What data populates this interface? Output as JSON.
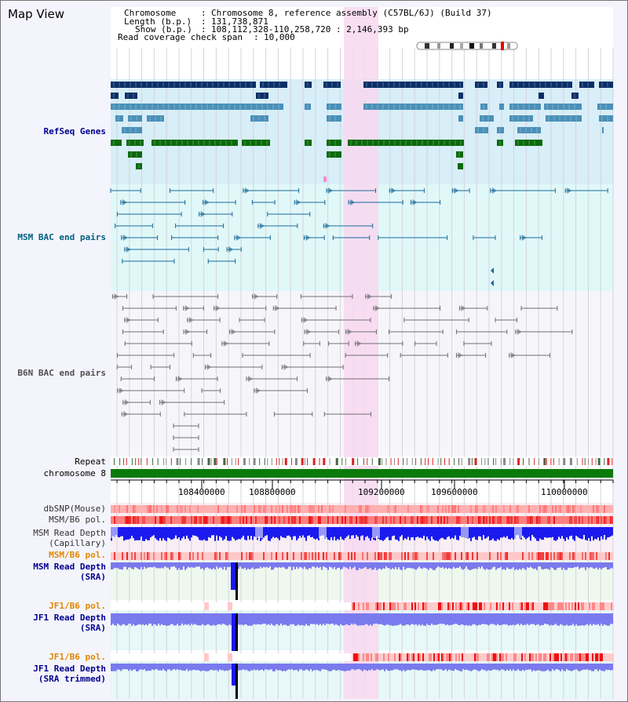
{
  "title": "Map View",
  "info": {
    "chromosome_key": "Chromosome",
    "chromosome_value": "Chromosome 8, reference assembly (C57BL/6J) (Build 37)",
    "length_key": "Length (b.p.)",
    "length_value": "131,738,871",
    "show_key": "Show (b.p.)",
    "show_value": "108,112,328-110,258,720 : 2,146,393 bp",
    "coverage_key": "Read coverage check span",
    "coverage_value": "10,000"
  },
  "tracks": {
    "refseq": "RefSeq Genes",
    "msm_bac": "MSM BAC end pairs",
    "b6n_bac": "B6N BAC end pairs",
    "repeat": "Repeat",
    "chromosome": "chromosome 8",
    "dbsnp": "dbSNP(Mouse)",
    "msm_b6_pol": "MSM/B6 pol.",
    "msm_depth_cap_1": "MSM Read Depth",
    "msm_depth_cap_2": "(Capillary)",
    "msm_b6_pol2": "MSM/B6 pol.",
    "msm_depth_sra_1": "MSM Read Depth",
    "msm_depth_sra_2": "(SRA)",
    "jf1_b6_pol": "JF1/B6 pol.",
    "jf1_depth_sra_1": "JF1 Read Depth",
    "jf1_depth_sra_2": "(SRA)",
    "jf1_b6_pol2": "JF1/B6 pol.",
    "jf1_depth_trim_1": "JF1 Read Depth",
    "jf1_depth_trim_2": "(SRA trimmed)"
  },
  "ruler_ticks": [
    "108400000",
    "108800000",
    "109200000",
    "109600000",
    "110000000"
  ],
  "colors": {
    "refseq_bg": "#d8eef8",
    "msm_bac_bg": "#e0f8f8",
    "highlight": "#f8d8f0",
    "gene_dark": "#0a2f68",
    "gene_mid": "#4a90b8",
    "gene_green": "#0a6a0a",
    "msm_bac_line": "#1a6a9a",
    "b6n_line": "#707070",
    "chromosome_bar": "#0a7a0a",
    "depth_blue": "#1a1aee",
    "depth_light": "#7a7aee",
    "orange_label": "#e08800",
    "navy_label": "#000090",
    "teal_label": "#006080"
  }
}
